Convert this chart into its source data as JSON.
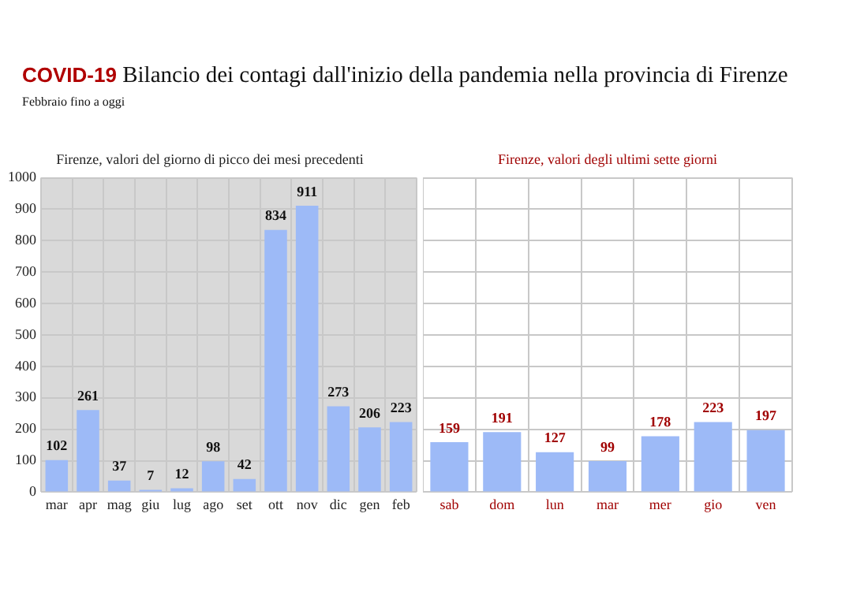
{
  "chart_data": [
    {
      "type": "other",
      "title": "COVID-19 Bilancio dei contagi dall'inizio della pandemia nella provincia di Firenze",
      "subtitle": "Febbraio fino a oggi"
    },
    {
      "type": "bar",
      "title": "Firenze, valori del giorno di picco dei mesi precedenti",
      "categories": [
        "mar",
        "apr",
        "mag",
        "giu",
        "lug",
        "ago",
        "set",
        "ott",
        "nov",
        "dic",
        "gen",
        "feb"
      ],
      "values": [
        102,
        261,
        37,
        7,
        12,
        98,
        42,
        834,
        911,
        273,
        206,
        223
      ],
      "color": "#9dbaf7",
      "ylim": [
        0,
        1000
      ],
      "yticks": [
        0,
        100,
        200,
        300,
        400,
        500,
        600,
        700,
        800,
        900,
        1000
      ],
      "grid": true,
      "data_labels": true
    },
    {
      "type": "bar",
      "title": "Firenze, valori degli ultimi sette giorni",
      "categories": [
        "sab",
        "dom",
        "lun",
        "mar",
        "mer",
        "gio",
        "ven"
      ],
      "values": [
        159,
        191,
        127,
        99,
        178,
        223,
        197
      ],
      "color": "#9dbaf7",
      "ylim": [
        0,
        1000
      ],
      "yticks": [
        0,
        100,
        200,
        300,
        400,
        500,
        600,
        700,
        800,
        900,
        1000
      ],
      "grid": true,
      "data_labels": true,
      "tick_labels": "x"
    }
  ]
}
